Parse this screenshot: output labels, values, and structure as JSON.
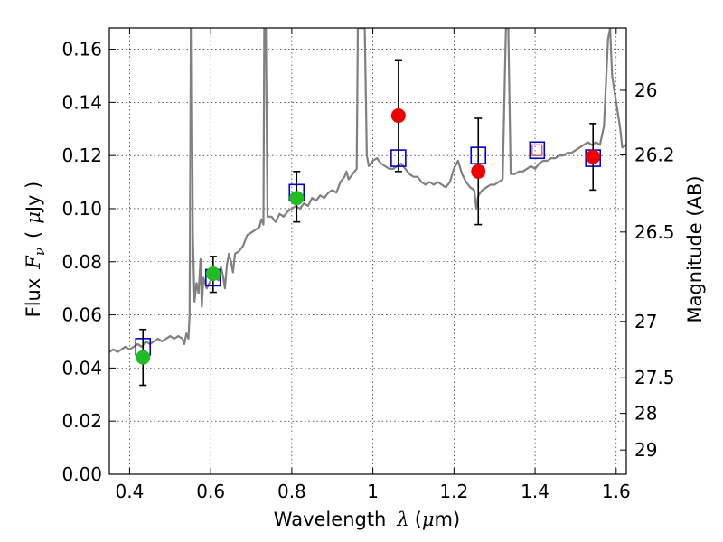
{
  "chart_data": {
    "type": "scatter",
    "xlabel_text": "Wavelength",
    "xlabel_symbol": "λ",
    "xlabel_unit_open": "(",
    "xlabel_unit_mu": "μ",
    "xlabel_unit_rest": "m)",
    "ylabel_text": "Flux",
    "ylabel_symbol": "F",
    "ylabel_sub": "ν",
    "ylabel_unit_open": "(",
    "ylabel_unit_mu": "μ",
    "ylabel_unit_rest": "Jy )",
    "y2label": "Magnitude (AB)",
    "xlim": [
      0.35,
      1.625
    ],
    "ylim": [
      0.0,
      0.168
    ],
    "grid": true,
    "x_ticks": [
      {
        "v": 0.4,
        "label": "0.4"
      },
      {
        "v": 0.6,
        "label": "0.6"
      },
      {
        "v": 0.8,
        "label": "0.8"
      },
      {
        "v": 1.0,
        "label": "1"
      },
      {
        "v": 1.2,
        "label": "1.2"
      },
      {
        "v": 1.4,
        "label": "1.4"
      },
      {
        "v": 1.6,
        "label": "1.6"
      }
    ],
    "y_ticks": [
      {
        "v": 0.0,
        "label": "0.00"
      },
      {
        "v": 0.02,
        "label": "0.02"
      },
      {
        "v": 0.04,
        "label": "0.04"
      },
      {
        "v": 0.06,
        "label": "0.06"
      },
      {
        "v": 0.08,
        "label": "0.08"
      },
      {
        "v": 0.1,
        "label": "0.10"
      },
      {
        "v": 0.12,
        "label": "0.12"
      },
      {
        "v": 0.14,
        "label": "0.14"
      },
      {
        "v": 0.16,
        "label": "0.16"
      }
    ],
    "mag_ticks": [
      {
        "v": 26,
        "label": "26"
      },
      {
        "v": 26.2,
        "label": "26.2"
      },
      {
        "v": 26.5,
        "label": "26.5"
      },
      {
        "v": 27,
        "label": "27"
      },
      {
        "v": 27.5,
        "label": "27.5"
      },
      {
        "v": 28,
        "label": "28"
      },
      {
        "v": 29,
        "label": "29"
      }
    ],
    "series": [
      {
        "kind": "model-spectrum",
        "color": "#808080",
        "points": [
          [
            0.35,
            0.046
          ],
          [
            0.36,
            0.047
          ],
          [
            0.37,
            0.046
          ],
          [
            0.38,
            0.047
          ],
          [
            0.39,
            0.048
          ],
          [
            0.4,
            0.047
          ],
          [
            0.41,
            0.048
          ],
          [
            0.42,
            0.049
          ],
          [
            0.43,
            0.048
          ],
          [
            0.44,
            0.05
          ],
          [
            0.45,
            0.049
          ],
          [
            0.46,
            0.05
          ],
          [
            0.47,
            0.051
          ],
          [
            0.48,
            0.05
          ],
          [
            0.49,
            0.051
          ],
          [
            0.5,
            0.052
          ],
          [
            0.51,
            0.051
          ],
          [
            0.52,
            0.052
          ],
          [
            0.53,
            0.051
          ],
          [
            0.535,
            0.049
          ],
          [
            0.54,
            0.053
          ],
          [
            0.545,
            0.051
          ],
          [
            0.548,
            0.06
          ],
          [
            0.551,
            0.168
          ],
          [
            0.553,
            0.168
          ],
          [
            0.556,
            0.09
          ],
          [
            0.56,
            0.065
          ],
          [
            0.565,
            0.072
          ],
          [
            0.57,
            0.068
          ],
          [
            0.575,
            0.081
          ],
          [
            0.578,
            0.063
          ],
          [
            0.582,
            0.074
          ],
          [
            0.59,
            0.07
          ],
          [
            0.6,
            0.073
          ],
          [
            0.61,
            0.074
          ],
          [
            0.62,
            0.073
          ],
          [
            0.625,
            0.078
          ],
          [
            0.63,
            0.075
          ],
          [
            0.635,
            0.07
          ],
          [
            0.64,
            0.079
          ],
          [
            0.645,
            0.083
          ],
          [
            0.65,
            0.08
          ],
          [
            0.655,
            0.076
          ],
          [
            0.66,
            0.083
          ],
          [
            0.67,
            0.084
          ],
          [
            0.68,
            0.086
          ],
          [
            0.69,
            0.09
          ],
          [
            0.7,
            0.091
          ],
          [
            0.71,
            0.092
          ],
          [
            0.72,
            0.093
          ],
          [
            0.725,
            0.096
          ],
          [
            0.73,
            0.094
          ],
          [
            0.732,
            0.168
          ],
          [
            0.736,
            0.168
          ],
          [
            0.74,
            0.097
          ],
          [
            0.75,
            0.097
          ],
          [
            0.76,
            0.095
          ],
          [
            0.77,
            0.098
          ],
          [
            0.78,
            0.097
          ],
          [
            0.79,
            0.099
          ],
          [
            0.8,
            0.1
          ],
          [
            0.81,
            0.101
          ],
          [
            0.82,
            0.1
          ],
          [
            0.83,
            0.102
          ],
          [
            0.84,
            0.101
          ],
          [
            0.85,
            0.104
          ],
          [
            0.86,
            0.103
          ],
          [
            0.87,
            0.105
          ],
          [
            0.88,
            0.104
          ],
          [
            0.89,
            0.106
          ],
          [
            0.9,
            0.107
          ],
          [
            0.91,
            0.106
          ],
          [
            0.92,
            0.11
          ],
          [
            0.93,
            0.112
          ],
          [
            0.935,
            0.114
          ],
          [
            0.94,
            0.111
          ],
          [
            0.95,
            0.113
          ],
          [
            0.96,
            0.115
          ],
          [
            0.963,
            0.168
          ],
          [
            0.975,
            0.168
          ],
          [
            0.98,
            0.168
          ],
          [
            0.985,
            0.12
          ],
          [
            0.99,
            0.116
          ],
          [
            1.0,
            0.118
          ],
          [
            1.01,
            0.119
          ],
          [
            1.02,
            0.117
          ],
          [
            1.03,
            0.116
          ],
          [
            1.04,
            0.115
          ],
          [
            1.05,
            0.115
          ],
          [
            1.06,
            0.116
          ],
          [
            1.07,
            0.117
          ],
          [
            1.08,
            0.115
          ],
          [
            1.09,
            0.113
          ],
          [
            1.1,
            0.112
          ],
          [
            1.11,
            0.112
          ],
          [
            1.12,
            0.11
          ],
          [
            1.13,
            0.109
          ],
          [
            1.14,
            0.11
          ],
          [
            1.15,
            0.109
          ],
          [
            1.16,
            0.11
          ],
          [
            1.17,
            0.109
          ],
          [
            1.18,
            0.108
          ],
          [
            1.19,
            0.11
          ],
          [
            1.2,
            0.115
          ],
          [
            1.21,
            0.118
          ],
          [
            1.22,
            0.113
          ],
          [
            1.23,
            0.11
          ],
          [
            1.24,
            0.108
          ],
          [
            1.25,
            0.107
          ],
          [
            1.255,
            0.1
          ],
          [
            1.26,
            0.105
          ],
          [
            1.27,
            0.107
          ],
          [
            1.28,
            0.108
          ],
          [
            1.29,
            0.109
          ],
          [
            1.3,
            0.109
          ],
          [
            1.31,
            0.11
          ],
          [
            1.32,
            0.111
          ],
          [
            1.328,
            0.168
          ],
          [
            1.334,
            0.168
          ],
          [
            1.34,
            0.113
          ],
          [
            1.35,
            0.113
          ],
          [
            1.36,
            0.114
          ],
          [
            1.37,
            0.114
          ],
          [
            1.38,
            0.115
          ],
          [
            1.39,
            0.116
          ],
          [
            1.4,
            0.115
          ],
          [
            1.41,
            0.117
          ],
          [
            1.42,
            0.118
          ],
          [
            1.43,
            0.118
          ],
          [
            1.44,
            0.119
          ],
          [
            1.45,
            0.119
          ],
          [
            1.46,
            0.12
          ],
          [
            1.47,
            0.12
          ],
          [
            1.48,
            0.121
          ],
          [
            1.49,
            0.121
          ],
          [
            1.5,
            0.122
          ],
          [
            1.51,
            0.123
          ],
          [
            1.52,
            0.124
          ],
          [
            1.53,
            0.125
          ],
          [
            1.54,
            0.124
          ],
          [
            1.55,
            0.125
          ],
          [
            1.56,
            0.124
          ],
          [
            1.57,
            0.131
          ],
          [
            1.58,
            0.164
          ],
          [
            1.585,
            0.168
          ],
          [
            1.59,
            0.15
          ],
          [
            1.6,
            0.14
          ],
          [
            1.61,
            0.13
          ],
          [
            1.615,
            0.123
          ],
          [
            1.625,
            0.124
          ]
        ]
      },
      {
        "kind": "model-boxes",
        "color": "#0000cc",
        "points": [
          [
            0.433,
            0.048
          ],
          [
            0.606,
            0.074
          ],
          [
            0.812,
            0.106
          ],
          [
            1.063,
            0.119
          ],
          [
            1.26,
            0.12
          ],
          [
            1.405,
            0.122
          ],
          [
            1.543,
            0.119
          ]
        ]
      },
      {
        "kind": "observed-green",
        "color": "#22bb22",
        "points": [
          {
            "x": 0.433,
            "y": 0.044,
            "err_lo": 0.0335,
            "err_hi": 0.0545
          },
          {
            "x": 0.606,
            "y": 0.0755,
            "err_lo": 0.0685,
            "err_hi": 0.082
          },
          {
            "x": 0.812,
            "y": 0.104,
            "err_lo": 0.095,
            "err_hi": 0.114
          }
        ]
      },
      {
        "kind": "observed-red",
        "color": "#ee0000",
        "points": [
          {
            "x": 1.063,
            "y": 0.135,
            "err_lo": 0.114,
            "err_hi": 0.156
          },
          {
            "x": 1.26,
            "y": 0.114,
            "err_lo": 0.094,
            "err_hi": 0.134
          },
          {
            "x": 1.543,
            "y": 0.1195,
            "err_lo": 0.107,
            "err_hi": 0.132
          }
        ]
      },
      {
        "kind": "upper-limit",
        "color": "#cc4444",
        "points": [
          [
            1.405,
            0.122
          ]
        ]
      }
    ]
  }
}
